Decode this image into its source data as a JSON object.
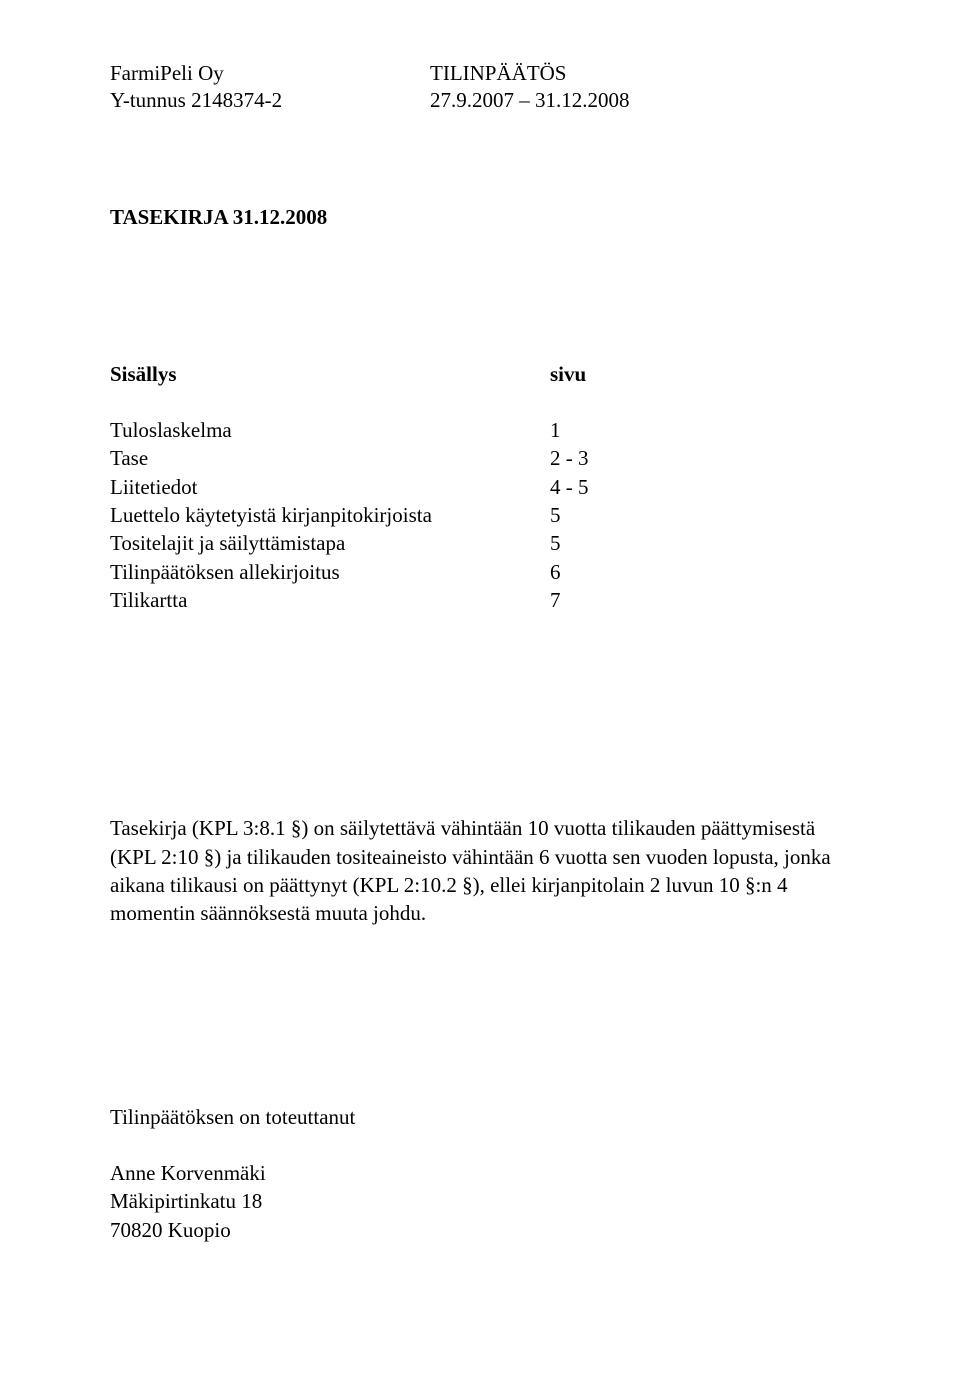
{
  "header": {
    "company_name": "FarmiPeli Oy",
    "company_id_line": "Y-tunnus 2148374-2",
    "doc_type": "TILINPÄÄTÖS",
    "period": "27.9.2007 – 31.12.2008"
  },
  "title": "TASEKIRJA 31.12.2008",
  "contents": {
    "heading_label": "Sisällys",
    "heading_page": "sivu",
    "rows": [
      {
        "label": "Tuloslaskelma",
        "page": "1"
      },
      {
        "label": "Tase",
        "page": "2 - 3"
      },
      {
        "label": "Liitetiedot",
        "page": "4 - 5"
      },
      {
        "label": "Luettelo käytetyistä kirjanpitokirjoista",
        "page": "5"
      },
      {
        "label": "Tositelajit ja säilyttämistapa",
        "page": "5"
      },
      {
        "label": "Tilinpäätöksen allekirjoitus",
        "page": "6"
      },
      {
        "label": "Tilikartta",
        "page": "7"
      }
    ]
  },
  "body_paragraph": "Tasekirja (KPL 3:8.1 §) on säilytettävä vähintään 10 vuotta tilikauden päättymisestä (KPL 2:10 §) ja tilikauden tositeaineisto vähintään 6 vuotta sen vuoden lopusta, jonka aikana tilikausi on päättynyt (KPL 2:10.2 §), ellei kirjanpitolain 2 luvun 10 §:n 4 momentin säännöksestä muuta johdu.",
  "footer": {
    "prepared_by_label": "Tilinpäätöksen on toteuttanut",
    "name": "Anne Korvenmäki",
    "address_line1": "Mäkipirtinkatu 18",
    "address_line2": "70820 Kuopio"
  },
  "colors": {
    "text": "#000000",
    "background": "#ffffff"
  },
  "typography": {
    "font_family": "Times New Roman",
    "base_size_pt": 16
  }
}
